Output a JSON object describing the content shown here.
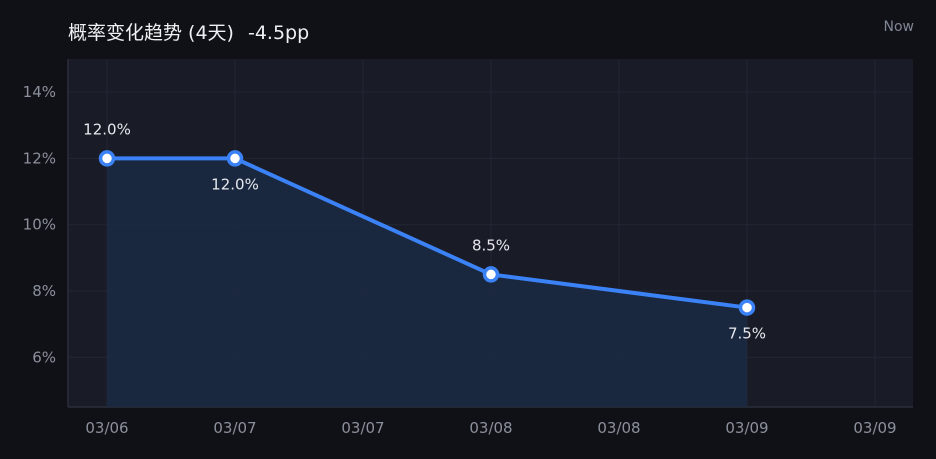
{
  "header": {
    "title": "概率变化趋势 (4天)",
    "delta": "-4.5pp",
    "time_label": "Now"
  },
  "colors": {
    "background": "#101116",
    "plot_background": "#191b26",
    "line": "#3b82f6",
    "area_fill": "#1b2a44",
    "grid": "#232634",
    "axis": "#2b2f3c"
  },
  "chart_data": {
    "type": "line",
    "title": "",
    "xlabel": "",
    "ylabel": "",
    "x_tick_labels": [
      "03/06",
      "03/07",
      "03/07",
      "03/08",
      "03/08",
      "03/09",
      "03/09"
    ],
    "y_ticks": [
      6,
      8,
      10,
      12,
      14
    ],
    "y_tick_labels": [
      "6%",
      "8%",
      "10%",
      "12%",
      "14%"
    ],
    "ylim": [
      4.5,
      15
    ],
    "grid": true,
    "legend": "none",
    "series": [
      {
        "points": [
          {
            "x": "03/06",
            "y": 12.0,
            "label": "12.0%",
            "label_position": "above"
          },
          {
            "x": "03/07",
            "y": 12.0,
            "label": "12.0%",
            "label_position": "below"
          },
          {
            "x": "03/08",
            "y": 8.5,
            "label": "8.5%",
            "label_position": "above"
          },
          {
            "x": "03/09",
            "y": 7.5,
            "label": "7.5%",
            "label_position": "below"
          }
        ]
      }
    ]
  }
}
